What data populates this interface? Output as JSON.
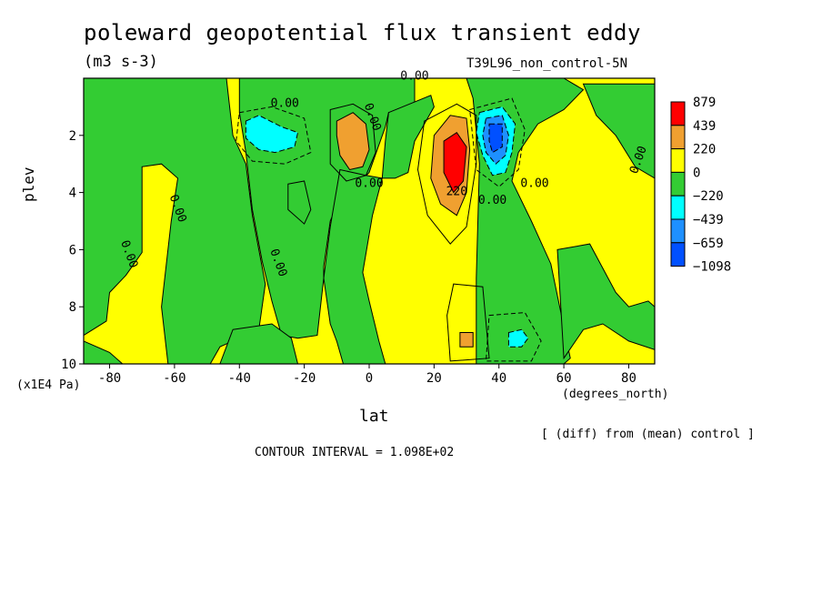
{
  "chart_data": {
    "type": "heatmap",
    "title": "poleward geopotential flux transient eddy",
    "units": "(m3 s-3)",
    "run_label": "T39L96_non_control-5N",
    "xlabel": "lat",
    "x_units": "(degrees_north)",
    "ylabel": "plev",
    "y_units": "(x1E4 Pa)",
    "xlim": [
      -88,
      88
    ],
    "ylim": [
      10,
      0
    ],
    "x_ticks": [
      -80,
      -60,
      -40,
      -20,
      0,
      20,
      40,
      60,
      80
    ],
    "y_ticks": [
      2,
      4,
      6,
      8,
      10
    ],
    "colorbar_levels": [
      "879",
      "439",
      "220",
      "0",
      "−220",
      "−439",
      "−659",
      "−1098"
    ],
    "colorbar_colors": [
      "#ff0000",
      "#f0a030",
      "#ffff00",
      "#33cc33",
      "#00ffff",
      "#1e90ff",
      "#0050ff"
    ],
    "contour_labels": [
      {
        "text": "0.00",
        "lat": 14,
        "plev": 0.05
      },
      {
        "text": "0.00",
        "lat": -26,
        "plev": 1.0
      },
      {
        "text": "0.00",
        "lat": 0,
        "plev": 1.4
      },
      {
        "text": "0.00",
        "lat": 0,
        "plev": 3.8
      },
      {
        "text": "220",
        "lat": 27,
        "plev": 4.1
      },
      {
        "text": "0.00",
        "lat": 38,
        "plev": 4.4
      },
      {
        "text": "0.00",
        "lat": 51,
        "plev": 3.8
      },
      {
        "text": "0.00",
        "lat": 84,
        "plev": 2.9
      },
      {
        "text": "0.00",
        "lat": -60,
        "plev": 4.6
      },
      {
        "text": "0.00",
        "lat": -75,
        "plev": 6.2
      },
      {
        "text": "0.00",
        "lat": -29,
        "plev": 6.5
      }
    ],
    "regions": [
      {
        "level": "0 to 220",
        "color": "#ffff00",
        "description": "background"
      },
      {
        "level": "-220 to 0",
        "color": "#33cc33",
        "lat_range": [
          -88,
          -35
        ],
        "plev_range": [
          0,
          10
        ]
      },
      {
        "level": "-439 to -220",
        "color": "#00ffff",
        "lat_center": -32,
        "plev_center": 2.2
      },
      {
        "level": "220 to 439",
        "color": "#f0a030",
        "lat_center": -5,
        "plev_center": 2.3
      },
      {
        "level": "220 to 439",
        "color": "#f0a030",
        "lat_center": 24,
        "plev_center": 3.3
      },
      {
        "level": "439 to 879",
        "color": "#ff0000",
        "lat_center": 26,
        "plev_center": 3.0
      },
      {
        "level": "-439 to -220",
        "color": "#00ffff",
        "lat_center": 39,
        "plev_center": 2.5
      },
      {
        "level": "-659 to -439",
        "color": "#1e90ff",
        "lat_center": 39,
        "plev_center": 2.2
      },
      {
        "level": "-1098 to -659",
        "color": "#0050ff",
        "lat_center": 39,
        "plev_center": 2.0
      },
      {
        "level": "-439 to -220",
        "color": "#00ffff",
        "lat_center": 46,
        "plev_center": 9.1
      },
      {
        "level": "220 to 439",
        "color": "#f0a030",
        "lat_center": 30,
        "plev_center": 9.2
      }
    ]
  },
  "footnote": "[ (diff) from (mean) control ]",
  "contour_interval": "CONTOUR INTERVAL = 1.098E+02"
}
